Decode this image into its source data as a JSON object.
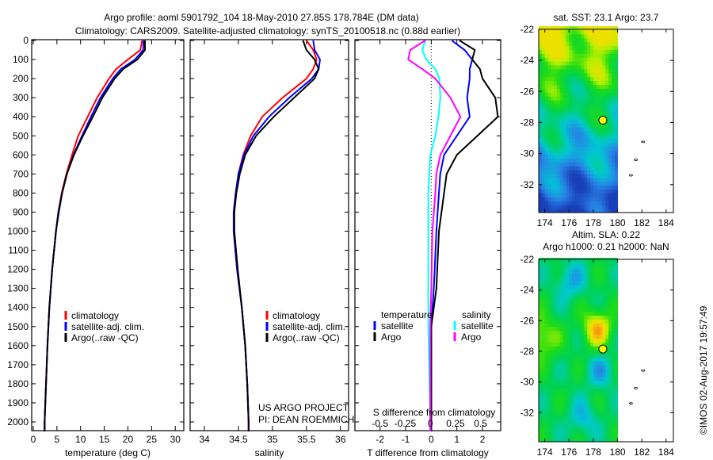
{
  "title_line1": "Argo profile: aoml 5901792_104 18-May-2010 27.85S 178.784E (DM data)",
  "title_line2": "Climatology: CARS2009. Satellite-adjusted climatology: synTS_20100518.nc (0.88d earlier)",
  "project_line1": "US ARGO PROJECT",
  "project_line2": "PI: DEAN ROEMMICH",
  "stamp": "©IMOS 02-Aug-2017 19:57:49",
  "colors": {
    "climatology": "#ff0000",
    "satellite": "#0000ff",
    "argo": "#000000",
    "sal_satellite": "#00ffff",
    "sal_argo": "#ff00ff"
  },
  "chart_data": [
    {
      "type": "line",
      "title": "",
      "xlabel": "temperature (deg C)",
      "ylabel": "",
      "xlim": [
        -1,
        31.5
      ],
      "ylim": [
        2050,
        0
      ],
      "xticks": [
        0,
        5,
        10,
        15,
        20,
        25,
        30
      ],
      "yticks": [
        0,
        100,
        200,
        300,
        400,
        500,
        600,
        700,
        800,
        900,
        1000,
        1100,
        1200,
        1300,
        1400,
        1500,
        1600,
        1700,
        1800,
        1900,
        2000
      ],
      "legend": {
        "placement": "bottom-middle",
        "entries": [
          "climatology",
          "satellite-adj. clim.",
          "Argo(..raw -QC)"
        ]
      },
      "depth": [
        0,
        50,
        100,
        150,
        200,
        300,
        400,
        500,
        600,
        700,
        800,
        900,
        1000,
        1200,
        1400,
        1600,
        1800,
        2000,
        2050
      ],
      "series": [
        {
          "name": "climatology",
          "values": [
            23,
            22.6,
            20,
            17.5,
            16,
            13.5,
            11.5,
            9.5,
            8.2,
            7,
            6,
            5.3,
            4.8,
            4,
            3.4,
            3,
            2.7,
            2.4,
            2.4
          ]
        },
        {
          "name": "satellite-adj. clim.",
          "values": [
            23.3,
            23.2,
            21.5,
            18.5,
            16.8,
            14.2,
            12.2,
            10.3,
            8.5,
            7.1,
            6.1,
            5.3,
            4.8,
            4,
            3.4,
            3,
            2.7,
            2.4,
            2.4
          ]
        },
        {
          "name": "Argo(..raw -QC)",
          "values": [
            23.6,
            23.6,
            22,
            19,
            17.2,
            14.6,
            12.6,
            10.5,
            8.6,
            7.1,
            6.1,
            5.4,
            4.8,
            4,
            3.4,
            3,
            2.7,
            2.4,
            2.4
          ]
        }
      ]
    },
    {
      "type": "line",
      "xlabel": "salinity",
      "xlim": [
        33.8,
        36.1
      ],
      "ylim": [
        2050,
        0
      ],
      "xticks": [
        34,
        34.5,
        35,
        35.5,
        36
      ],
      "legend": {
        "placement": "bottom-middle",
        "entries": [
          "climatology",
          "satellite-adj. clim.",
          "Argo(..raw -QC)"
        ]
      },
      "depth": [
        0,
        50,
        100,
        150,
        200,
        300,
        400,
        500,
        600,
        700,
        800,
        900,
        1000,
        1200,
        1400,
        1600,
        1800,
        2000,
        2050
      ],
      "series": [
        {
          "name": "climatology",
          "values": [
            35.5,
            35.6,
            35.65,
            35.6,
            35.5,
            35.15,
            34.85,
            34.68,
            34.57,
            34.5,
            34.46,
            34.43,
            34.43,
            34.48,
            34.55,
            34.6,
            34.63,
            34.65,
            34.65
          ]
        },
        {
          "name": "satellite-adj. clim.",
          "values": [
            35.6,
            35.62,
            35.7,
            35.68,
            35.58,
            35.25,
            34.95,
            34.72,
            34.58,
            34.5,
            34.46,
            34.43,
            34.43,
            34.48,
            34.55,
            34.6,
            34.63,
            34.65,
            34.65
          ]
        },
        {
          "name": "Argo(..raw -QC)",
          "values": [
            35.45,
            35.5,
            35.62,
            35.68,
            35.62,
            35.32,
            35.02,
            34.76,
            34.6,
            34.52,
            34.47,
            34.44,
            34.44,
            34.49,
            34.55,
            34.6,
            34.63,
            34.65,
            34.65
          ]
        }
      ]
    },
    {
      "type": "line",
      "xlabel": "T difference from climatology",
      "x2label": "S difference from climatology",
      "xlim": [
        -3,
        2.8
      ],
      "x2lim": [
        -0.75,
        0.7
      ],
      "xticks": [
        -2,
        -1,
        0,
        1,
        2
      ],
      "x2ticks": [
        -0.5,
        -0.25,
        0,
        0.25,
        0.5
      ],
      "x2ticklabels": [
        "-0.5",
        "-0.25",
        "0",
        "0.25",
        "0.5"
      ],
      "ylim": [
        2050,
        0
      ],
      "legend": {
        "placement": "bottom-middle",
        "temperature_header": "temperature",
        "salinity_header": "salinity",
        "entries": [
          "satellite",
          "Argo",
          "satellite",
          "Argo"
        ]
      },
      "depth": [
        0,
        50,
        100,
        150,
        200,
        300,
        400,
        500,
        600,
        700,
        800,
        1000,
        1300,
        1500,
        2000,
        2050
      ],
      "series": [
        {
          "name": "temperature satellite",
          "axis": "T",
          "values": [
            0.8,
            1.3,
            1.6,
            1.5,
            1.5,
            1.4,
            1.5,
            1.0,
            0.5,
            0.35,
            0.3,
            0.2,
            0.1,
            0,
            0,
            0
          ]
        },
        {
          "name": "temperature Argo",
          "axis": "T",
          "values": [
            1.1,
            1.7,
            1.6,
            1.9,
            2.0,
            2.5,
            2.6,
            1.8,
            1.0,
            0.6,
            0.5,
            0.3,
            0.2,
            0,
            0,
            0
          ]
        },
        {
          "name": "salinity satellite",
          "axis": "S",
          "values": [
            -0.05,
            -0.08,
            -0.04,
            0.05,
            0.09,
            0.1,
            0.08,
            0.05,
            0.0,
            -0.01,
            -0.02,
            -0.02,
            -0.02,
            -0.02,
            0,
            0
          ]
        },
        {
          "name": "salinity Argo",
          "axis": "S",
          "values": [
            -0.05,
            -0.2,
            -0.22,
            -0.08,
            0.05,
            0.2,
            0.3,
            0.2,
            0.1,
            0.06,
            0.05,
            0.02,
            0.01,
            0,
            0,
            0
          ]
        }
      ]
    },
    {
      "type": "heatmap",
      "title": "sat. SST: 23.1 Argo: 23.7",
      "xlim": [
        173.5,
        184.6
      ],
      "ylim": [
        -33.8,
        -22
      ],
      "xticks": [
        174,
        176,
        178,
        180,
        182,
        184
      ],
      "yticks": [
        -22,
        -24,
        -26,
        -28,
        -30,
        -32
      ],
      "argo_position": [
        178.784,
        -27.85
      ]
    },
    {
      "type": "heatmap",
      "title": "Altim. SLA: 0.22",
      "subtitle": "Argo h1000: 0.21 h2000: NaN",
      "xlim": [
        173.5,
        184.6
      ],
      "ylim": [
        -33.9,
        -22
      ],
      "xticks": [
        174,
        176,
        178,
        180,
        182,
        184
      ],
      "yticks": [
        -22,
        -24,
        -26,
        -28,
        -30,
        -32
      ],
      "argo_position": [
        178.784,
        -27.85
      ]
    }
  ]
}
